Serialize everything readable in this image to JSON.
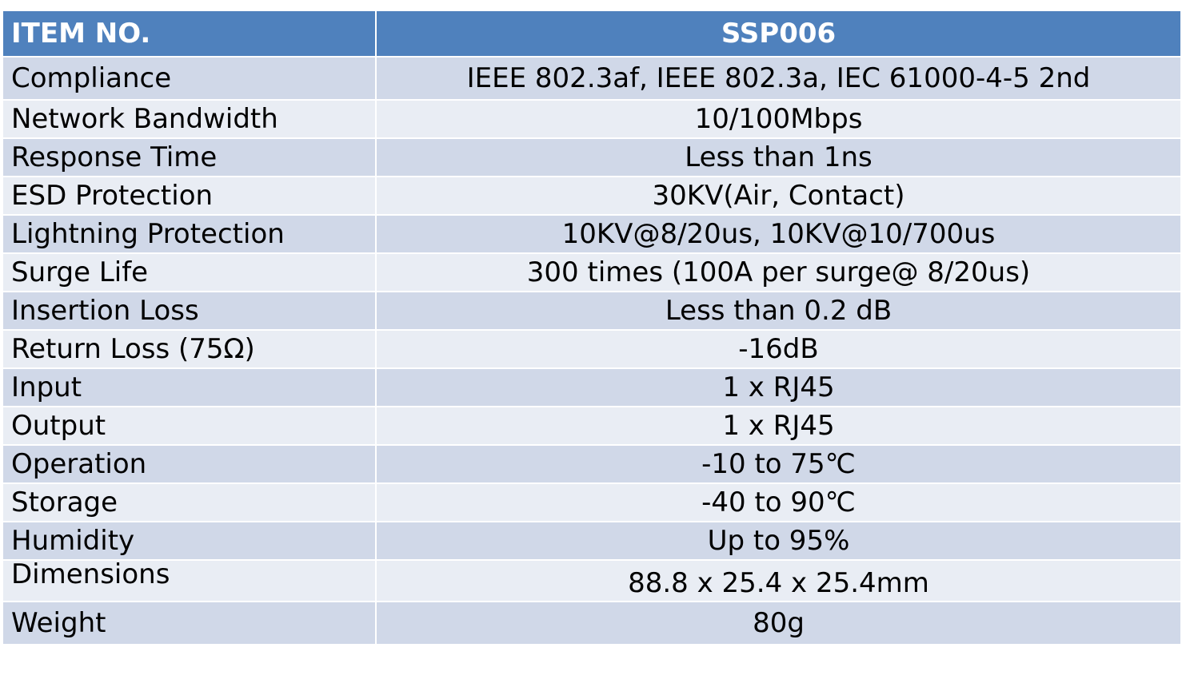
{
  "header": {
    "label": "ITEM NO.",
    "value": "SSP006"
  },
  "rows": [
    {
      "label": "Compliance",
      "value": "IEEE 802.3af, IEEE 802.3a, IEC 61000-4-5 2nd"
    },
    {
      "label": "Network Bandwidth",
      "value": "10/100Mbps"
    },
    {
      "label": "Response Time",
      "value": "Less than 1ns"
    },
    {
      "label": "ESD Protection",
      "value": "30KV(Air, Contact)"
    },
    {
      "label": "Lightning Protection",
      "value": "10KV@8/20us, 10KV@10/700us"
    },
    {
      "label": "Surge Life",
      "value": "300 times (100A per surge@ 8/20us)"
    },
    {
      "label": "Insertion Loss",
      "value": "Less than 0.2 dB"
    },
    {
      "label": "Return Loss (75Ω)",
      "value": "-16dB"
    },
    {
      "label": "Input",
      "value": "1 x RJ45"
    },
    {
      "label": "Output",
      "value": "1 x RJ45"
    },
    {
      "label": "Operation",
      "value": "-10 to 75℃"
    },
    {
      "label": "Storage",
      "value": "-40 to 90℃"
    },
    {
      "label": "Humidity",
      "value": "Up to 95%"
    },
    {
      "label": "Dimensions",
      "value": "88.8 x 25.4 x 25.4mm"
    },
    {
      "label": "Weight",
      "value": "80g"
    }
  ],
  "colors": {
    "header_bg": "#4f81bd",
    "row_band_dark": "#d0d8e8",
    "row_band_light": "#e9edf4"
  }
}
